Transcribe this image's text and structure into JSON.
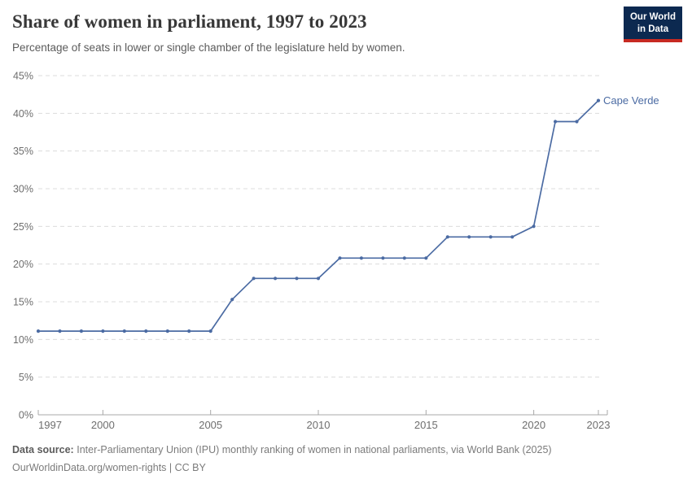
{
  "header": {
    "title": "Share of women in parliament, 1997 to 2023",
    "subtitle": "Percentage of seats in lower or single chamber of the legislature held by women.",
    "logo": {
      "line1": "Our World",
      "line2": "in Data",
      "bg_color": "#0c2950",
      "stripe_color": "#c72a22"
    }
  },
  "chart_data": {
    "type": "line",
    "title": "Share of women in parliament, 1997 to 2023",
    "xlabel": "",
    "ylabel": "",
    "x": [
      1997,
      1998,
      1999,
      2000,
      2001,
      2002,
      2003,
      2004,
      2005,
      2006,
      2007,
      2008,
      2009,
      2010,
      2011,
      2012,
      2013,
      2014,
      2015,
      2016,
      2017,
      2018,
      2019,
      2020,
      2021,
      2022,
      2023
    ],
    "series": [
      {
        "name": "Cape Verde",
        "color": "#4b6ba3",
        "values": [
          11.1,
          11.1,
          11.1,
          11.1,
          11.1,
          11.1,
          11.1,
          11.1,
          11.1,
          15.3,
          18.1,
          18.1,
          18.1,
          18.1,
          20.8,
          20.8,
          20.8,
          20.8,
          20.8,
          23.6,
          23.6,
          23.6,
          23.6,
          25.0,
          38.9,
          38.9,
          41.7
        ]
      }
    ],
    "xlim": [
      1997,
      2023
    ],
    "ylim": [
      0,
      45
    ],
    "x_ticks": [
      1997,
      2000,
      2005,
      2010,
      2015,
      2020,
      2023
    ],
    "y_ticks": [
      0,
      5,
      10,
      15,
      20,
      25,
      30,
      35,
      40,
      45
    ],
    "y_tick_suffix": "%",
    "grid": "horizontal-dashed",
    "legend_position": "end-of-line-label",
    "colors": {
      "gridline": "#dcdcdc",
      "axis": "#a8a8a8",
      "tick_label": "#6e6e6e"
    }
  },
  "footer": {
    "source_label": "Data source:",
    "source_text": "Inter-Parliamentary Union (IPU) monthly ranking of women in national parliaments, via World Bank (2025)",
    "license_line": "OurWorldinData.org/women-rights | CC BY"
  }
}
